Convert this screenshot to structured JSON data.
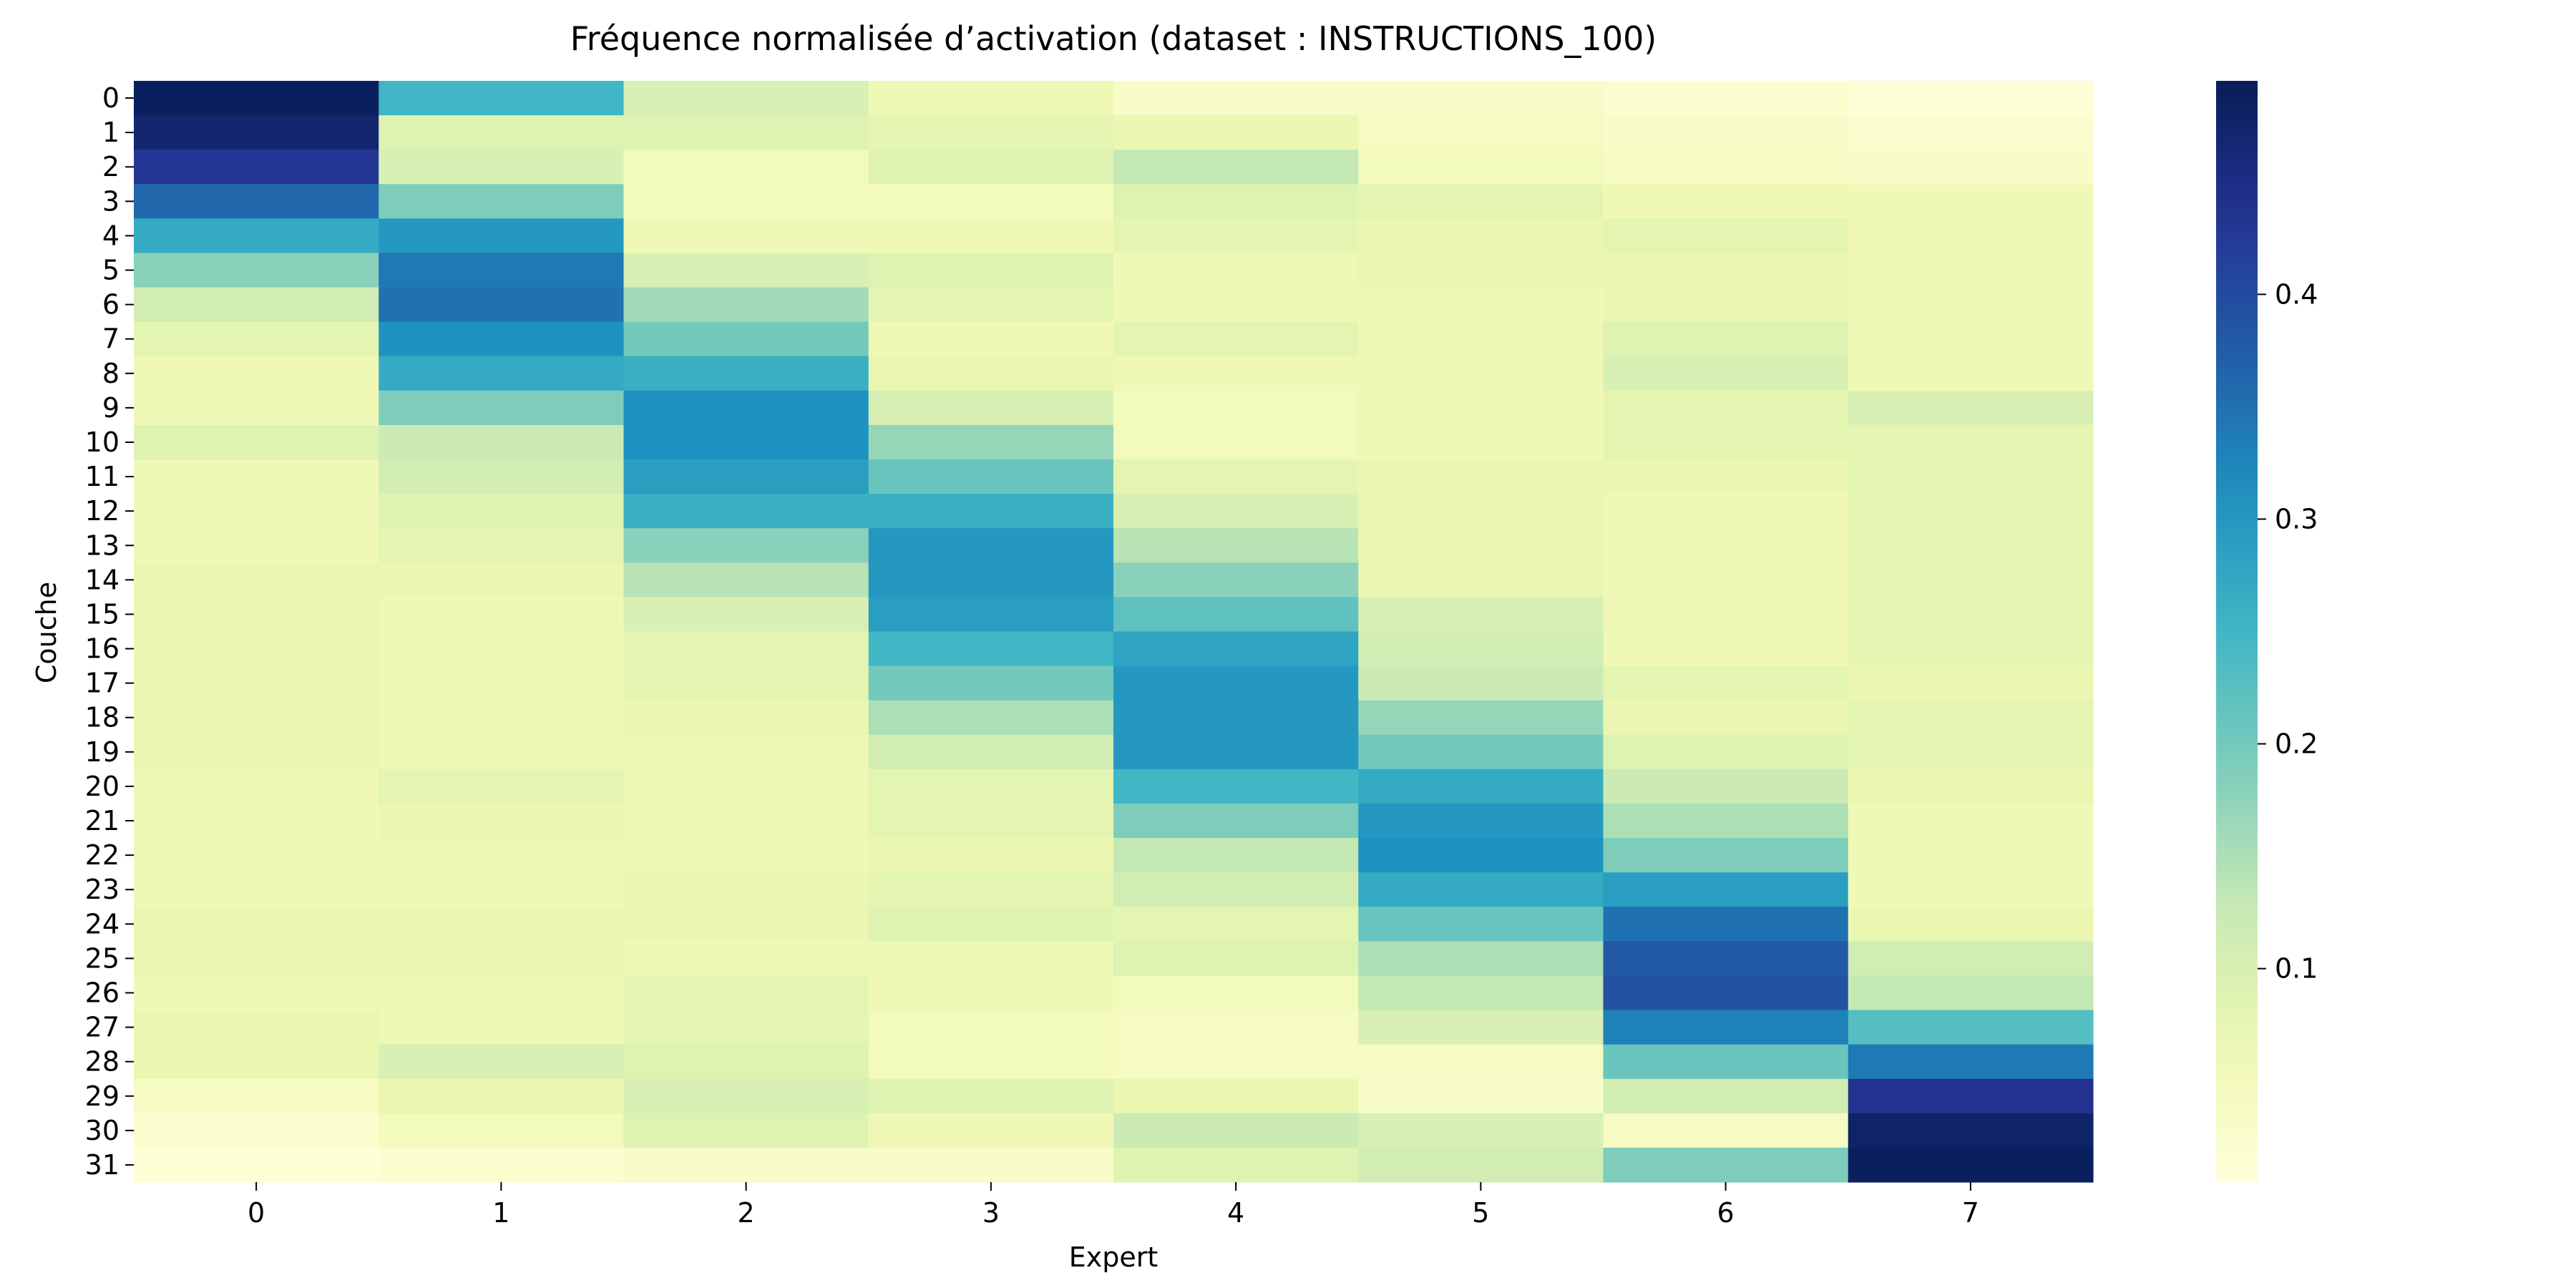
{
  "chart_data": {
    "type": "heatmap",
    "title": "Fréquence normalisée d’activation (dataset : INSTRUCTIONS_100)",
    "xlabel": "Expert",
    "ylabel": "Couche",
    "x_categories": [
      "0",
      "1",
      "2",
      "3",
      "4",
      "5",
      "6",
      "7"
    ],
    "y_categories": [
      "0",
      "1",
      "2",
      "3",
      "4",
      "5",
      "6",
      "7",
      "8",
      "9",
      "10",
      "11",
      "12",
      "13",
      "14",
      "15",
      "16",
      "17",
      "18",
      "19",
      "20",
      "21",
      "22",
      "23",
      "24",
      "25",
      "26",
      "27",
      "28",
      "29",
      "30",
      "31"
    ],
    "colormap": "YlGnBu",
    "color_range": [
      0.005,
      0.495
    ],
    "colorbar_ticks": [
      0.1,
      0.2,
      0.3,
      0.4
    ],
    "colorbar_tick_labels": [
      "0.1",
      "0.2",
      "0.3",
      "0.4"
    ],
    "values": [
      [
        0.49,
        0.25,
        0.1,
        0.06,
        0.03,
        0.03,
        0.02,
        0.01
      ],
      [
        0.47,
        0.09,
        0.09,
        0.08,
        0.07,
        0.04,
        0.03,
        0.02
      ],
      [
        0.43,
        0.1,
        0.05,
        0.09,
        0.13,
        0.05,
        0.04,
        0.03
      ],
      [
        0.36,
        0.19,
        0.05,
        0.05,
        0.09,
        0.08,
        0.06,
        0.06
      ],
      [
        0.27,
        0.3,
        0.06,
        0.06,
        0.08,
        0.07,
        0.08,
        0.06
      ],
      [
        0.18,
        0.34,
        0.1,
        0.09,
        0.06,
        0.07,
        0.07,
        0.06
      ],
      [
        0.11,
        0.35,
        0.16,
        0.08,
        0.06,
        0.06,
        0.07,
        0.06
      ],
      [
        0.08,
        0.31,
        0.2,
        0.06,
        0.08,
        0.06,
        0.09,
        0.06
      ],
      [
        0.06,
        0.27,
        0.26,
        0.07,
        0.06,
        0.06,
        0.1,
        0.06
      ],
      [
        0.06,
        0.19,
        0.31,
        0.1,
        0.05,
        0.06,
        0.08,
        0.1
      ],
      [
        0.09,
        0.12,
        0.31,
        0.17,
        0.05,
        0.06,
        0.08,
        0.08
      ],
      [
        0.06,
        0.11,
        0.29,
        0.21,
        0.08,
        0.07,
        0.07,
        0.08
      ],
      [
        0.06,
        0.09,
        0.26,
        0.26,
        0.1,
        0.07,
        0.06,
        0.08
      ],
      [
        0.06,
        0.08,
        0.18,
        0.3,
        0.14,
        0.07,
        0.06,
        0.08
      ],
      [
        0.07,
        0.07,
        0.14,
        0.3,
        0.18,
        0.07,
        0.06,
        0.08
      ],
      [
        0.07,
        0.06,
        0.1,
        0.29,
        0.22,
        0.1,
        0.06,
        0.08
      ],
      [
        0.07,
        0.06,
        0.08,
        0.25,
        0.28,
        0.11,
        0.06,
        0.08
      ],
      [
        0.07,
        0.06,
        0.08,
        0.2,
        0.3,
        0.12,
        0.08,
        0.07
      ],
      [
        0.07,
        0.06,
        0.07,
        0.15,
        0.3,
        0.17,
        0.07,
        0.08
      ],
      [
        0.07,
        0.06,
        0.06,
        0.11,
        0.3,
        0.2,
        0.09,
        0.08
      ],
      [
        0.06,
        0.08,
        0.06,
        0.08,
        0.25,
        0.27,
        0.12,
        0.07
      ],
      [
        0.06,
        0.07,
        0.06,
        0.08,
        0.19,
        0.3,
        0.15,
        0.06
      ],
      [
        0.06,
        0.06,
        0.06,
        0.07,
        0.13,
        0.31,
        0.19,
        0.06
      ],
      [
        0.06,
        0.06,
        0.07,
        0.08,
        0.11,
        0.27,
        0.29,
        0.06
      ],
      [
        0.07,
        0.07,
        0.07,
        0.09,
        0.08,
        0.21,
        0.35,
        0.07
      ],
      [
        0.07,
        0.07,
        0.06,
        0.06,
        0.09,
        0.15,
        0.38,
        0.11
      ],
      [
        0.06,
        0.06,
        0.08,
        0.06,
        0.05,
        0.13,
        0.39,
        0.13
      ],
      [
        0.07,
        0.06,
        0.08,
        0.05,
        0.04,
        0.1,
        0.33,
        0.23
      ],
      [
        0.07,
        0.1,
        0.09,
        0.05,
        0.04,
        0.04,
        0.21,
        0.34
      ],
      [
        0.04,
        0.07,
        0.1,
        0.09,
        0.07,
        0.03,
        0.11,
        0.44
      ],
      [
        0.02,
        0.05,
        0.09,
        0.06,
        0.12,
        0.1,
        0.04,
        0.48
      ],
      [
        0.01,
        0.02,
        0.03,
        0.03,
        0.09,
        0.11,
        0.19,
        0.49
      ]
    ]
  }
}
